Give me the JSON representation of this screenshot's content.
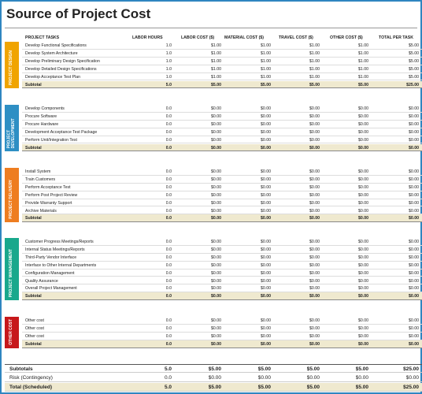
{
  "title": "Source of Project Cost",
  "columns": {
    "tasks": "PROJECT TASKS",
    "labor_hours": "LABOR HOURS",
    "labor_cost": "LABOR COST ($)",
    "material_cost": "MATERIAL COST ($)",
    "travel_cost": "TRAVEL COST ($)",
    "other_cost": "OTHER COST ($)",
    "total_per_task": "TOTAL PER TASK"
  },
  "colors": {
    "design": "#f0a400",
    "development": "#2e8fc4",
    "delivery": "#ee7d20",
    "management": "#19a88c",
    "other": "#c7181b",
    "subtotal_bg": "#efe9cf"
  },
  "sections": [
    {
      "label": "PROJECT DESIGN",
      "rows": [
        {
          "task": "Develop Functional Specifications",
          "hours": "1.0",
          "labor": "$1.00",
          "material": "$1.00",
          "travel": "$1.00",
          "other": "$1.00",
          "total": "$5.00"
        },
        {
          "task": "Develop System Architecture",
          "hours": "1.0",
          "labor": "$1.00",
          "material": "$1.00",
          "travel": "$1.00",
          "other": "$1.00",
          "total": "$5.00"
        },
        {
          "task": "Develop Preliminary Design Specification",
          "hours": "1.0",
          "labor": "$1.00",
          "material": "$1.00",
          "travel": "$1.00",
          "other": "$1.00",
          "total": "$5.00"
        },
        {
          "task": "Develop Detailed Design Specifications",
          "hours": "1.0",
          "labor": "$1.00",
          "material": "$1.00",
          "travel": "$1.00",
          "other": "$1.00",
          "total": "$5.00"
        },
        {
          "task": "Develop Acceptance Test Plan",
          "hours": "1.0",
          "labor": "$1.00",
          "material": "$1.00",
          "travel": "$1.00",
          "other": "$1.00",
          "total": "$5.00"
        }
      ],
      "subtotal": {
        "task": "Subtotal",
        "hours": "5.0",
        "labor": "$5.00",
        "material": "$5.00",
        "travel": "$5.00",
        "other": "$5.00",
        "total": "$25.00"
      }
    },
    {
      "label": "PROJECT DEVELOPMENT",
      "rows": [
        {
          "task": "Develop Components",
          "hours": "0.0",
          "labor": "$0.00",
          "material": "$0.00",
          "travel": "$0.00",
          "other": "$0.00",
          "total": "$0.00"
        },
        {
          "task": "Procure Software",
          "hours": "0.0",
          "labor": "$0.00",
          "material": "$0.00",
          "travel": "$0.00",
          "other": "$0.00",
          "total": "$0.00"
        },
        {
          "task": "Procure Hardware",
          "hours": "0.0",
          "labor": "$0.00",
          "material": "$0.00",
          "travel": "$0.00",
          "other": "$0.00",
          "total": "$0.00"
        },
        {
          "task": "Development Acceptance Test Package",
          "hours": "0.0",
          "labor": "$0.00",
          "material": "$0.00",
          "travel": "$0.00",
          "other": "$0.00",
          "total": "$0.00"
        },
        {
          "task": "Perform Unit/Integration Test",
          "hours": "0.0",
          "labor": "$0.00",
          "material": "$0.00",
          "travel": "$0.00",
          "other": "$0.00",
          "total": "$0.00"
        }
      ],
      "subtotal": {
        "task": "Subtotal",
        "hours": "0.0",
        "labor": "$0.00",
        "material": "$0.00",
        "travel": "$0.00",
        "other": "$0.00",
        "total": "$0.00"
      }
    },
    {
      "label": "PROJECT DELIVERY",
      "rows": [
        {
          "task": "Install System",
          "hours": "0.0",
          "labor": "$0.00",
          "material": "$0.00",
          "travel": "$0.00",
          "other": "$0.00",
          "total": "$0.00"
        },
        {
          "task": "Train Customers",
          "hours": "0.0",
          "labor": "$0.00",
          "material": "$0.00",
          "travel": "$0.00",
          "other": "$0.00",
          "total": "$0.00"
        },
        {
          "task": "Perform Acceptance Test",
          "hours": "0.0",
          "labor": "$0.00",
          "material": "$0.00",
          "travel": "$0.00",
          "other": "$0.00",
          "total": "$0.00"
        },
        {
          "task": "Perform Post Project Review",
          "hours": "0.0",
          "labor": "$0.00",
          "material": "$0.00",
          "travel": "$0.00",
          "other": "$0.00",
          "total": "$0.00"
        },
        {
          "task": "Provide Warranty Support",
          "hours": "0.0",
          "labor": "$0.00",
          "material": "$0.00",
          "travel": "$0.00",
          "other": "$0.00",
          "total": "$0.00"
        },
        {
          "task": "Archive Materials",
          "hours": "0.0",
          "labor": "$0.00",
          "material": "$0.00",
          "travel": "$0.00",
          "other": "$0.00",
          "total": "$0.00"
        }
      ],
      "subtotal": {
        "task": "Subtotal",
        "hours": "0.0",
        "labor": "$0.00",
        "material": "$0.00",
        "travel": "$0.00",
        "other": "$0.00",
        "total": "$0.00"
      }
    },
    {
      "label": "PROJECT MANAGEMENT",
      "rows": [
        {
          "task": "Customer Progress Meetings/Reports",
          "hours": "0.0",
          "labor": "$0.00",
          "material": "$0.00",
          "travel": "$0.00",
          "other": "$0.00",
          "total": "$0.00"
        },
        {
          "task": "Internal Status Meetings/Reports",
          "hours": "0.0",
          "labor": "$0.00",
          "material": "$0.00",
          "travel": "$0.00",
          "other": "$0.00",
          "total": "$0.00"
        },
        {
          "task": "Third-Party Vendor Interface",
          "hours": "0.0",
          "labor": "$0.00",
          "material": "$0.00",
          "travel": "$0.00",
          "other": "$0.00",
          "total": "$0.00"
        },
        {
          "task": "Interface to Other Internal Departments",
          "hours": "0.0",
          "labor": "$0.00",
          "material": "$0.00",
          "travel": "$0.00",
          "other": "$0.00",
          "total": "$0.00"
        },
        {
          "task": "Configuration Management",
          "hours": "0.0",
          "labor": "$0.00",
          "material": "$0.00",
          "travel": "$0.00",
          "other": "$0.00",
          "total": "$0.00"
        },
        {
          "task": "Quality Assurance",
          "hours": "0.0",
          "labor": "$0.00",
          "material": "$0.00",
          "travel": "$0.00",
          "other": "$0.00",
          "total": "$0.00"
        },
        {
          "task": "Overall Project Management",
          "hours": "0.0",
          "labor": "$0.00",
          "material": "$0.00",
          "travel": "$0.00",
          "other": "$0.00",
          "total": "$0.00"
        }
      ],
      "subtotal": {
        "task": "Subtotal",
        "hours": "0.0",
        "labor": "$0.00",
        "material": "$0.00",
        "travel": "$0.00",
        "other": "$0.00",
        "total": "$0.00"
      }
    },
    {
      "label": "OTHER COST",
      "rows": [
        {
          "task": "Other cost",
          "hours": "0.0",
          "labor": "$0.00",
          "material": "$0.00",
          "travel": "$0.00",
          "other": "$0.00",
          "total": "$0.00"
        },
        {
          "task": "Other cost",
          "hours": "0.0",
          "labor": "$0.00",
          "material": "$0.00",
          "travel": "$0.00",
          "other": "$0.00",
          "total": "$0.00"
        },
        {
          "task": "Other cost",
          "hours": "0.0",
          "labor": "$0.00",
          "material": "$0.00",
          "travel": "$0.00",
          "other": "$0.00",
          "total": "$0.00"
        }
      ],
      "subtotal": {
        "task": "Subtotal",
        "hours": "0.0",
        "labor": "$0.00",
        "material": "$0.00",
        "travel": "$0.00",
        "other": "$0.00",
        "total": "$0.00"
      }
    }
  ],
  "footer": [
    {
      "label": "Subtotals",
      "hours": "5.0",
      "labor": "$5.00",
      "material": "$5.00",
      "travel": "$5.00",
      "other": "$5.00",
      "total": "$25.00"
    },
    {
      "label": "Risk (Contingency)",
      "hours": "0.0",
      "labor": "$0.00",
      "material": "$0.00",
      "travel": "$0.00",
      "other": "$0.00",
      "total": "$0.00"
    },
    {
      "label": "Total (Scheduled)",
      "hours": "5.0",
      "labor": "$5.00",
      "material": "$5.00",
      "travel": "$5.00",
      "other": "$5.00",
      "total": "$25.00"
    }
  ]
}
